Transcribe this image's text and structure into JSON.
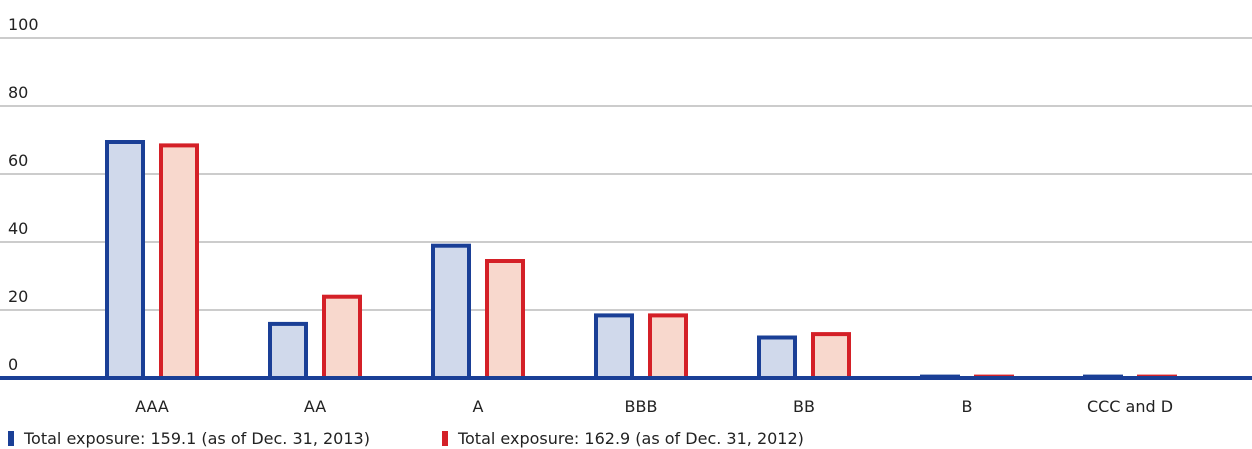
{
  "chart_data": {
    "type": "bar",
    "categories": [
      "AAA",
      "AA",
      "A",
      "BBB",
      "BB",
      "B",
      "CCC and D"
    ],
    "series": [
      {
        "name": "Total exposure: 159.1 (as of Dec. 31, 2013)",
        "values": [
          70,
          16.5,
          39.5,
          19,
          12.5,
          1,
          1
        ],
        "stroke": "#1a3f96",
        "fill": "#d0d9eb"
      },
      {
        "name": "Total exposure: 162.9 (as of Dec. 31, 2012)",
        "values": [
          69,
          24.5,
          35,
          19,
          13.5,
          1,
          1
        ],
        "stroke": "#d42027",
        "fill": "#f8d8cd"
      }
    ],
    "yticks": [
      "0",
      "20",
      "40",
      "60",
      "80",
      "100"
    ],
    "ylim": [
      0,
      100
    ],
    "grid": true,
    "legend_position": "bottom-left",
    "title": "",
    "xlabel": "",
    "ylabel": ""
  }
}
